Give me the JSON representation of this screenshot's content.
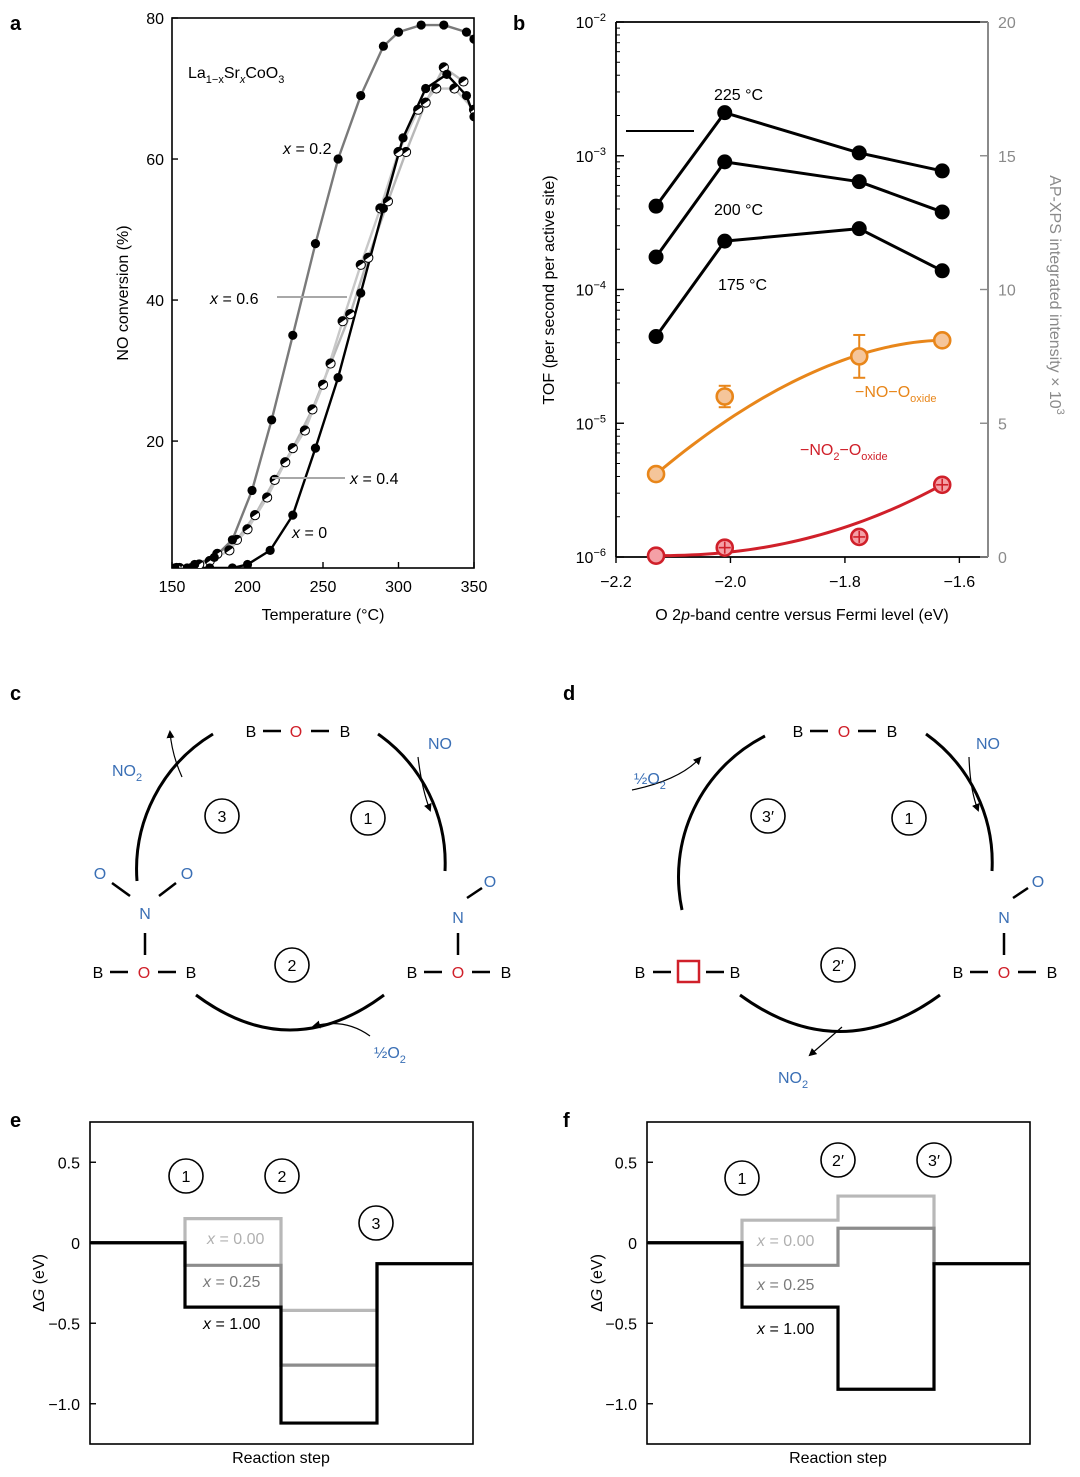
{
  "colors": {
    "black": "#000000",
    "gray_dark": "#7a7a7a",
    "gray_mid": "#8c8c8c",
    "gray_light": "#b8b8b8",
    "gray_xlight": "#c8c8c8",
    "red": "#d0202a",
    "orange": "#e8861a",
    "orange_fill": "#f5c59a",
    "red_fill": "#f4a0a6",
    "blue": "#3a6fb5",
    "axis_gray": "#8a8a8a"
  },
  "panel_labels": {
    "a": "a",
    "b": "b",
    "c": "c",
    "d": "d",
    "e": "e",
    "f": "f"
  },
  "chart_data": [
    {
      "panel": "a",
      "type": "line",
      "title": "La1−xSrxCoO3",
      "compound": {
        "base": "La",
        "sub1": "1−x",
        "mid": "Sr",
        "sub2": "x",
        "end": "CoO",
        "sub3": "3"
      },
      "xlabel": "Temperature (°C)",
      "ylabel": "NO conversion (%)",
      "xlim": [
        150,
        350
      ],
      "ylim": [
        2,
        80
      ],
      "xticks": [
        "150",
        "200",
        "250",
        "300",
        "350"
      ],
      "yticks": [
        "20",
        "40",
        "60",
        "80"
      ],
      "xtick_values": [
        150,
        200,
        250,
        300,
        350
      ],
      "ytick_values": [
        20,
        40,
        60,
        80
      ],
      "series": [
        {
          "name": "x = 0",
          "label_var": "x",
          "label_val": " = 0",
          "marker": "black",
          "x": [
            160,
            175,
            190,
            200,
            215,
            230,
            245,
            260,
            275,
            290,
            303,
            318,
            332,
            345,
            350
          ],
          "y": [
            2,
            2,
            2,
            2.5,
            4.5,
            9.5,
            19,
            29,
            41,
            53,
            63,
            70,
            72,
            69,
            66
          ]
        },
        {
          "name": "x = 0.2",
          "label_var": "x",
          "label_val": " = 0.2",
          "marker": "gray",
          "x": [
            152,
            165,
            178,
            190,
            203,
            216,
            230,
            245,
            260,
            275,
            290,
            300,
            315,
            330,
            345,
            350
          ],
          "y": [
            2,
            2.5,
            3.5,
            6,
            13,
            23,
            35,
            48,
            60,
            69,
            76,
            78,
            79,
            79,
            78,
            77
          ]
        },
        {
          "name": "x = 0.4",
          "label_var": "x",
          "label_val": " = 0.4",
          "marker": "half",
          "x": [
            153,
            163,
            175,
            188,
            200,
            213,
            225,
            238,
            250,
            263,
            275,
            288,
            300,
            313,
            325,
            337,
            350
          ],
          "y": [
            2,
            2,
            3,
            4.5,
            7.5,
            12,
            17,
            21.5,
            28,
            37,
            45,
            53,
            61,
            67,
            70,
            70,
            67
          ]
        },
        {
          "name": "x = 0.6",
          "label_var": "x",
          "label_val": " = 0.6",
          "marker": "half",
          "x": [
            155,
            168,
            180,
            193,
            205,
            218,
            230,
            243,
            255,
            268,
            280,
            293,
            305,
            318,
            330,
            343
          ],
          "y": [
            2,
            2.5,
            4,
            6,
            9.5,
            14.5,
            19,
            24.5,
            31,
            38,
            46,
            54,
            61,
            68,
            73,
            71
          ]
        }
      ]
    },
    {
      "panel": "b",
      "type": "line",
      "xlabel": "O 2p-band centre versus Fermi level (eV)",
      "xlabel_parts": {
        "pre": "O 2",
        "p": "p",
        "post": "-band centre versus Fermi level (eV)"
      },
      "ylabel_left": "TOF (per second per active site)",
      "ylabel_right": "AP-XPS integrated intensity × 10³",
      "ylabel_right_text": "AP-XPS integrated intensity × 10",
      "ylabel_right_sup": "3",
      "xlim": [
        -2.2,
        -1.55
      ],
      "ylim_left_log10": [
        -6,
        -2
      ],
      "ylim_right": [
        0,
        20
      ],
      "xticks": [
        "−2.2",
        "−2.0",
        "−1.8",
        "−1.6"
      ],
      "xtick_values": [
        -2.2,
        -2.0,
        -1.8,
        -1.6
      ],
      "yticks_left": [
        {
          "base": "10",
          "exp": "−2"
        },
        {
          "base": "10",
          "exp": "−3"
        },
        {
          "base": "10",
          "exp": "−4"
        },
        {
          "base": "10",
          "exp": "−5"
        },
        {
          "base": "10",
          "exp": "−6"
        }
      ],
      "ytick_left_exp": [
        -2,
        -3,
        -4,
        -5,
        -6
      ],
      "yticks_right": [
        "20",
        "15",
        "10",
        "5",
        "0"
      ],
      "ytick_right_values": [
        20,
        15,
        10,
        5,
        0
      ],
      "series_left": [
        {
          "name": "225 °C",
          "x": [
            -2.13,
            -2.01,
            -1.775,
            -1.63
          ],
          "y": [
            0.00042,
            0.0021,
            0.00105,
            0.00077
          ]
        },
        {
          "name": "200 °C",
          "x": [
            -2.13,
            -2.01,
            -1.775,
            -1.63
          ],
          "y": [
            0.000175,
            0.0009,
            0.00064,
            0.00038
          ]
        },
        {
          "name": "175 °C",
          "x": [
            -2.13,
            -2.01,
            -1.775,
            -1.63
          ],
          "y": [
            4.45e-05,
            0.00023,
            0.000285,
            0.000138
          ]
        }
      ],
      "series_right": [
        {
          "name": "−NO−O_oxide",
          "label": {
            "main": "−NO−O",
            "sub": "oxide"
          },
          "x": [
            -2.13,
            -2.01,
            -1.775,
            -1.63
          ],
          "y": [
            3.1,
            6.0,
            7.5,
            8.1
          ],
          "err": [
            0,
            0.4,
            0.8,
            0
          ]
        },
        {
          "name": "−NO2−O_oxide",
          "label": {
            "main": "−NO",
            "sub2": "2",
            "mid": "−O",
            "sub": "oxide"
          },
          "x": [
            -2.13,
            -2.01,
            -1.775,
            -1.63
          ],
          "y": [
            0.05,
            0.35,
            0.75,
            2.7
          ],
          "err": [
            0,
            0,
            0,
            0
          ]
        }
      ],
      "temperature_labels": [
        "225 °C",
        "200 °C",
        "175 °C"
      ]
    },
    {
      "panel": "e",
      "type": "line",
      "subtype": "step",
      "xlabel": "Reaction step",
      "ylabel": "ΔG (eV)",
      "ylim": [
        -1.25,
        0.75
      ],
      "yticks": [
        "0.5",
        "0",
        "−0.5",
        "−1.0"
      ],
      "ytick_values": [
        0.5,
        0,
        -0.5,
        -1.0
      ],
      "steps": [
        "1",
        "2",
        "3"
      ],
      "series": [
        {
          "name": "x = 0.00",
          "levels": [
            0,
            0.15,
            -0.42,
            -0.13
          ]
        },
        {
          "name": "x = 0.25",
          "levels": [
            0,
            -0.14,
            -0.76,
            -0.13
          ]
        },
        {
          "name": "x = 1.00",
          "levels": [
            0,
            -0.4,
            -1.12,
            -0.13
          ]
        }
      ]
    },
    {
      "panel": "f",
      "type": "line",
      "subtype": "step",
      "xlabel": "Reaction step",
      "ylabel": "ΔG (eV)",
      "ylim": [
        -1.25,
        0.75
      ],
      "yticks": [
        "0.5",
        "0",
        "−0.5",
        "−1.0"
      ],
      "ytick_values": [
        0.5,
        0,
        -0.5,
        -1.0
      ],
      "steps": [
        "1",
        "2′",
        "3′"
      ],
      "series": [
        {
          "name": "x = 0.00",
          "levels": [
            0,
            0.14,
            0.29,
            -0.13
          ]
        },
        {
          "name": "x = 0.25",
          "levels": [
            0,
            -0.14,
            0.09,
            -0.13
          ]
        },
        {
          "name": "x = 1.00",
          "levels": [
            0,
            -0.4,
            -0.91,
            -0.13
          ]
        }
      ]
    }
  ],
  "series_labels": {
    "x_var": "x",
    "x000": " = 0.00",
    "x025": " = 0.25",
    "x100": " = 1.00"
  },
  "delta_g": {
    "delta": "Δ",
    "g": "G",
    "unit": " (eV)"
  },
  "cycle_c": {
    "top": {
      "b1": "B",
      "o": "O",
      "b2": "B"
    },
    "right": {
      "b1": "B",
      "o": "O",
      "b2": "B",
      "n": "N",
      "o2": "O"
    },
    "left": {
      "b1": "B",
      "o": "O",
      "b2": "B",
      "n": "N",
      "o_l": "O",
      "o_r": "O"
    },
    "steps": [
      "3",
      "1",
      "2"
    ],
    "no_in": "NO",
    "no2_out": {
      "main": "NO",
      "sub": "2"
    },
    "o2_in": {
      "main": "½O",
      "sub": "2"
    }
  },
  "cycle_d": {
    "top": {
      "b1": "B",
      "o": "O",
      "b2": "B"
    },
    "right": {
      "b1": "B",
      "o": "O",
      "b2": "B",
      "n": "N",
      "o2": "O"
    },
    "left": {
      "b1": "B",
      "b2": "B",
      "vacancy": "oxygen-vacancy"
    },
    "steps": [
      "3′",
      "1",
      "2′"
    ],
    "no_in": "NO",
    "no2_out": {
      "main": "NO",
      "sub": "2"
    },
    "o2_in": {
      "main": "½O",
      "sub": "2"
    }
  }
}
